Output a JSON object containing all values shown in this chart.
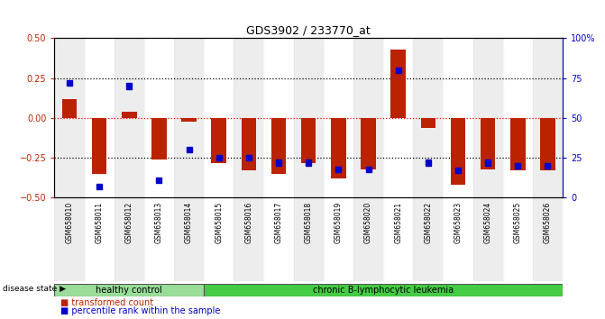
{
  "title": "GDS3902 / 233770_at",
  "samples": [
    "GSM658010",
    "GSM658011",
    "GSM658012",
    "GSM658013",
    "GSM658014",
    "GSM658015",
    "GSM658016",
    "GSM658017",
    "GSM658018",
    "GSM658019",
    "GSM658020",
    "GSM658021",
    "GSM658022",
    "GSM658023",
    "GSM658024",
    "GSM658025",
    "GSM658026"
  ],
  "red_values": [
    0.12,
    -0.35,
    0.04,
    -0.26,
    -0.02,
    -0.28,
    -0.33,
    -0.35,
    -0.28,
    -0.38,
    -0.32,
    0.43,
    -0.06,
    -0.42,
    -0.32,
    -0.33,
    -0.33
  ],
  "blue_values_pct": [
    72,
    7,
    70,
    11,
    30,
    25,
    25,
    22,
    22,
    18,
    18,
    80,
    22,
    17,
    22,
    20,
    20
  ],
  "healthy_count": 5,
  "healthy_label": "healthy control",
  "disease_label": "chronic B-lymphocytic leukemia",
  "red_color": "#BB2200",
  "blue_color": "#0000CC",
  "healthy_bg": "#99DD99",
  "disease_bg": "#44CC44",
  "sample_bg_even": "#DDDDDD",
  "sample_bg_odd": "#FFFFFF",
  "ylim_left": [
    -0.5,
    0.5
  ],
  "ylim_right": [
    0,
    100
  ],
  "yticks_left": [
    -0.5,
    -0.25,
    0.0,
    0.25,
    0.5
  ],
  "yticks_right": [
    0,
    25,
    50,
    75,
    100
  ]
}
